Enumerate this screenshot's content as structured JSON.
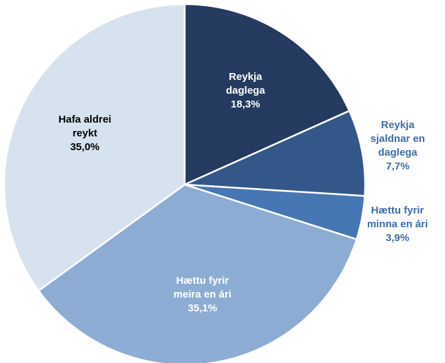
{
  "chart_data": {
    "type": "pie",
    "categories": [
      "Reykja daglega",
      "Reykja sjaldnar en daglega",
      "Hættu fyrir minna en ári",
      "Hættu fyrir meira en ári",
      "Hafa aldrei reykt"
    ],
    "values": [
      18.3,
      7.7,
      3.9,
      35.1,
      35.0
    ],
    "value_labels": [
      "18,3%",
      "7,7%",
      "3,9%",
      "35,1%",
      "35,0%"
    ],
    "colors": [
      "#243a5e",
      "#34578a",
      "#4676b4",
      "#8dacd4",
      "#d7e2ef"
    ]
  }
}
